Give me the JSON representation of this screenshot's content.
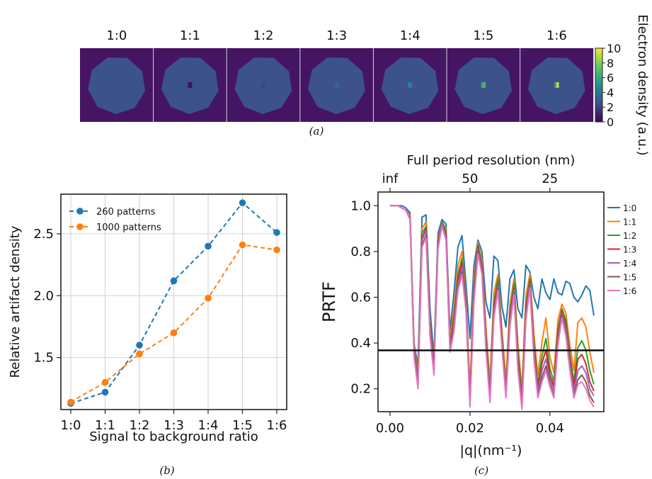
{
  "panel_a": {
    "caption": "(a)",
    "titles": [
      "1:0",
      "1:1",
      "1:2",
      "1:3",
      "1:4",
      "1:5",
      "1:6"
    ],
    "spot_intensity": [
      0,
      0.5,
      2.2,
      3.3,
      4.4,
      6.8,
      9.5
    ],
    "background_level": 2.5,
    "colorbar": {
      "label": "Electron density (a.u.)",
      "ticks": [
        "0",
        "2",
        "4",
        "6",
        "8",
        "10"
      ],
      "colormap": [
        "#440154",
        "#3b528b",
        "#21918c",
        "#5ec962",
        "#fde725"
      ]
    }
  },
  "panel_b": {
    "caption": "(b)"
  },
  "panel_c": {
    "caption": "(c)"
  },
  "chart_data": [
    {
      "type": "line",
      "categories": [
        "1:0",
        "1:1",
        "1:2",
        "1:3",
        "1:4",
        "1:5",
        "1:6"
      ],
      "series": [
        {
          "name": "260 patterns",
          "color": "#1f77b4",
          "values": [
            1.13,
            1.22,
            1.6,
            2.12,
            2.4,
            2.75,
            2.51
          ]
        },
        {
          "name": "1000 patterns",
          "color": "#ff7f0e",
          "values": [
            1.14,
            1.3,
            1.53,
            1.7,
            1.98,
            2.41,
            2.37
          ]
        }
      ],
      "xlabel": "Signal to background ratio",
      "ylabel": "Relative artifact density",
      "ylim": [
        1.08,
        2.82
      ],
      "yticks": [
        1.5,
        2.0,
        2.5
      ],
      "ytick_labels": [
        "1.5",
        "2.0",
        "2.5"
      ],
      "grid": true,
      "legend": "top-left",
      "line_style": "dashed"
    },
    {
      "type": "line",
      "xlabel": "|q|(nm⁻¹)",
      "ylabel": "PRTF",
      "top_axis_label": "Full period resolution (nm)",
      "xlim": [
        -0.003,
        0.0535
      ],
      "ylim": [
        0.1,
        1.06
      ],
      "xticks": [
        0.0,
        0.02,
        0.04
      ],
      "xtick_labels": [
        "0.00",
        "0.02",
        "0.04"
      ],
      "yticks": [
        0.2,
        0.4,
        0.6,
        0.8,
        1.0
      ],
      "ytick_labels": [
        "0.2",
        "0.4",
        "0.6",
        "0.8",
        "1.0"
      ],
      "top_ticks": [
        0.0,
        0.02,
        0.04
      ],
      "top_tick_labels": [
        "inf",
        "50",
        "25"
      ],
      "threshold": 0.368,
      "legend": "right",
      "x": [
        0.0,
        0.001,
        0.002,
        0.003,
        0.004,
        0.005,
        0.006,
        0.007,
        0.008,
        0.009,
        0.01,
        0.011,
        0.012,
        0.013,
        0.014,
        0.015,
        0.016,
        0.017,
        0.018,
        0.019,
        0.02,
        0.021,
        0.022,
        0.023,
        0.024,
        0.025,
        0.026,
        0.027,
        0.028,
        0.029,
        0.03,
        0.031,
        0.032,
        0.033,
        0.034,
        0.035,
        0.036,
        0.037,
        0.038,
        0.039,
        0.04,
        0.041,
        0.042,
        0.043,
        0.044,
        0.045,
        0.046,
        0.047,
        0.048,
        0.049,
        0.05,
        0.051
      ],
      "series": [
        {
          "name": "1:0",
          "color": "#1f77b4",
          "values": [
            1.0,
            1.0,
            1.0,
            1.0,
            0.99,
            0.97,
            0.4,
            0.3,
            0.95,
            0.96,
            0.55,
            0.34,
            0.88,
            0.94,
            0.92,
            0.45,
            0.62,
            0.82,
            0.87,
            0.66,
            0.42,
            0.74,
            0.85,
            0.8,
            0.58,
            0.51,
            0.78,
            0.76,
            0.56,
            0.47,
            0.68,
            0.72,
            0.55,
            0.51,
            0.74,
            0.71,
            0.6,
            0.55,
            0.68,
            0.62,
            0.59,
            0.68,
            0.62,
            0.61,
            0.67,
            0.66,
            0.6,
            0.58,
            0.61,
            0.65,
            0.63,
            0.52
          ]
        },
        {
          "name": "1:1",
          "color": "#ff7f0e",
          "values": [
            1.0,
            1.0,
            1.0,
            0.99,
            0.98,
            0.96,
            0.4,
            0.25,
            0.9,
            0.93,
            0.48,
            0.31,
            0.86,
            0.93,
            0.9,
            0.42,
            0.55,
            0.74,
            0.8,
            0.6,
            0.2,
            0.68,
            0.84,
            0.76,
            0.47,
            0.23,
            0.62,
            0.7,
            0.46,
            0.24,
            0.57,
            0.68,
            0.4,
            0.2,
            0.61,
            0.7,
            0.44,
            0.26,
            0.4,
            0.51,
            0.34,
            0.27,
            0.5,
            0.57,
            0.53,
            0.39,
            0.28,
            0.49,
            0.51,
            0.47,
            0.36,
            0.27
          ]
        },
        {
          "name": "1:2",
          "color": "#2ca02c",
          "values": [
            1.0,
            1.0,
            1.0,
            0.99,
            0.98,
            0.95,
            0.38,
            0.24,
            0.88,
            0.91,
            0.47,
            0.3,
            0.85,
            0.93,
            0.89,
            0.4,
            0.52,
            0.7,
            0.77,
            0.58,
            0.16,
            0.65,
            0.83,
            0.74,
            0.44,
            0.19,
            0.58,
            0.68,
            0.43,
            0.2,
            0.54,
            0.66,
            0.36,
            0.17,
            0.57,
            0.68,
            0.4,
            0.22,
            0.34,
            0.42,
            0.29,
            0.23,
            0.46,
            0.55,
            0.5,
            0.35,
            0.23,
            0.38,
            0.41,
            0.37,
            0.28,
            0.22
          ]
        },
        {
          "name": "1:3",
          "color": "#d62728",
          "values": [
            1.0,
            1.0,
            1.0,
            0.99,
            0.98,
            0.95,
            0.37,
            0.23,
            0.86,
            0.9,
            0.46,
            0.29,
            0.84,
            0.92,
            0.88,
            0.39,
            0.5,
            0.68,
            0.75,
            0.57,
            0.15,
            0.63,
            0.82,
            0.73,
            0.42,
            0.17,
            0.56,
            0.66,
            0.41,
            0.19,
            0.52,
            0.64,
            0.33,
            0.15,
            0.55,
            0.67,
            0.38,
            0.2,
            0.31,
            0.37,
            0.26,
            0.21,
            0.44,
            0.54,
            0.48,
            0.33,
            0.21,
            0.33,
            0.35,
            0.31,
            0.23,
            0.19
          ]
        },
        {
          "name": "1:4",
          "color": "#9467bd",
          "values": [
            1.0,
            1.0,
            1.0,
            0.99,
            0.98,
            0.95,
            0.36,
            0.22,
            0.85,
            0.89,
            0.45,
            0.28,
            0.83,
            0.92,
            0.87,
            0.38,
            0.48,
            0.66,
            0.73,
            0.56,
            0.14,
            0.61,
            0.81,
            0.72,
            0.4,
            0.16,
            0.54,
            0.65,
            0.4,
            0.18,
            0.5,
            0.63,
            0.31,
            0.14,
            0.53,
            0.66,
            0.36,
            0.19,
            0.28,
            0.33,
            0.24,
            0.19,
            0.42,
            0.53,
            0.46,
            0.31,
            0.19,
            0.28,
            0.3,
            0.27,
            0.2,
            0.17
          ]
        },
        {
          "name": "1:5",
          "color": "#8c564b",
          "values": [
            1.0,
            1.0,
            1.0,
            0.99,
            0.98,
            0.94,
            0.35,
            0.21,
            0.83,
            0.87,
            0.44,
            0.27,
            0.82,
            0.91,
            0.86,
            0.37,
            0.46,
            0.64,
            0.71,
            0.55,
            0.13,
            0.59,
            0.8,
            0.71,
            0.38,
            0.15,
            0.52,
            0.64,
            0.39,
            0.17,
            0.48,
            0.62,
            0.29,
            0.12,
            0.51,
            0.65,
            0.34,
            0.17,
            0.25,
            0.3,
            0.22,
            0.17,
            0.4,
            0.52,
            0.44,
            0.29,
            0.17,
            0.24,
            0.26,
            0.23,
            0.17,
            0.14
          ]
        },
        {
          "name": "1:6",
          "color": "#e377c2",
          "values": [
            1.0,
            1.0,
            1.0,
            0.99,
            0.98,
            0.94,
            0.34,
            0.2,
            0.82,
            0.86,
            0.43,
            0.26,
            0.81,
            0.91,
            0.85,
            0.36,
            0.45,
            0.63,
            0.7,
            0.54,
            0.12,
            0.58,
            0.79,
            0.7,
            0.37,
            0.14,
            0.51,
            0.63,
            0.38,
            0.16,
            0.47,
            0.61,
            0.28,
            0.11,
            0.5,
            0.64,
            0.33,
            0.16,
            0.23,
            0.28,
            0.21,
            0.16,
            0.39,
            0.51,
            0.43,
            0.28,
            0.16,
            0.22,
            0.23,
            0.2,
            0.15,
            0.12
          ]
        }
      ]
    }
  ]
}
